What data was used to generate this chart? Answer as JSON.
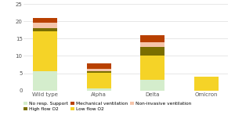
{
  "categories": [
    "Wild type",
    "Alpha",
    "Delta",
    "Omicron"
  ],
  "series": {
    "No resp. Support": [
      5.5,
      0.5,
      3.0,
      0.0
    ],
    "Low flow O2": [
      11.5,
      4.5,
      7.0,
      3.9
    ],
    "High flow O2": [
      1.0,
      0.5,
      2.5,
      0.0
    ],
    "Non-invasive ventilation": [
      1.5,
      0.8,
      1.5,
      0.0
    ],
    "Mechanical ventilation": [
      1.5,
      1.5,
      2.0,
      0.0
    ]
  },
  "colors": {
    "No resp. Support": "#d4edcc",
    "Low flow O2": "#f5d327",
    "High flow O2": "#7a6e00",
    "Non-invasive ventilation": "#f5c4aa",
    "Mechanical ventilation": "#b84000"
  },
  "ylim": [
    0,
    25
  ],
  "yticks": [
    0,
    5,
    10,
    15,
    20,
    25
  ],
  "legend_labels": [
    "No resp. Support",
    "Low flow O2",
    "High flow O2",
    "Non-invasive ventilation",
    "Mechanical ventilation"
  ],
  "bar_width": 0.45,
  "background_color": "#ffffff",
  "grid_color": "#dddddd",
  "tick_color": "#555555",
  "font_size": 5.0,
  "legend_font_size": 4.2
}
